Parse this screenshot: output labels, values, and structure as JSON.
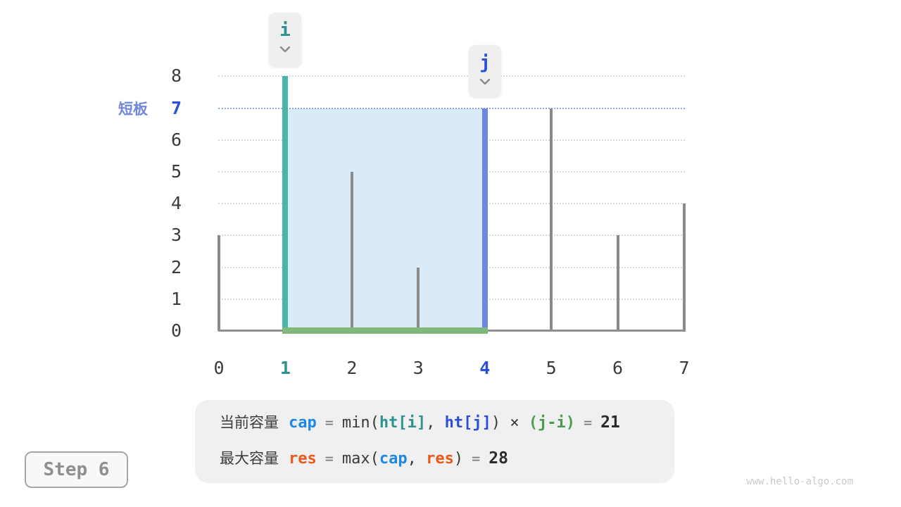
{
  "pointers": {
    "i": {
      "label": "i",
      "index": 1
    },
    "j": {
      "label": "j",
      "index": 4
    }
  },
  "axis": {
    "short_board_label": "短板",
    "y_ticks": [
      0,
      1,
      2,
      3,
      4,
      5,
      6,
      7,
      8
    ],
    "x_ticks": [
      0,
      1,
      2,
      3,
      4,
      5,
      6,
      7
    ]
  },
  "chart_data": {
    "type": "bar",
    "title": "",
    "xlabel": "",
    "ylabel": "",
    "x": [
      0,
      1,
      2,
      3,
      4,
      5,
      6,
      7
    ],
    "values": [
      3,
      8,
      5,
      2,
      7,
      7,
      3,
      4
    ],
    "ylim": [
      0,
      8
    ],
    "grid": "horizontal-dotted",
    "annotations": {
      "pointer_i_index": 1,
      "pointer_j_index": 4,
      "short_board_value": 7,
      "water_level_line": 7,
      "filled_region": {
        "from_x": 1,
        "to_x": 4,
        "top": 7
      }
    }
  },
  "formula_panel": {
    "line1": [
      {
        "t": "当前容量",
        "s": "cn"
      },
      {
        "t": "cap",
        "s": "cap"
      },
      {
        "t": " = ",
        "s": "eq"
      },
      {
        "t": "min(",
        "s": "plain"
      },
      {
        "t": "ht[i]",
        "s": "hti"
      },
      {
        "t": ", ",
        "s": "plain"
      },
      {
        "t": "ht[j]",
        "s": "htj"
      },
      {
        "t": ") × ",
        "s": "plain"
      },
      {
        "t": "(j-i)",
        "s": "ji"
      },
      {
        "t": " = ",
        "s": "eq"
      },
      {
        "t": "21",
        "s": "result"
      }
    ],
    "line2": [
      {
        "t": "最大容量",
        "s": "cn"
      },
      {
        "t": "res",
        "s": "res"
      },
      {
        "t": " = ",
        "s": "eq"
      },
      {
        "t": "max(",
        "s": "plain"
      },
      {
        "t": "cap",
        "s": "cap"
      },
      {
        "t": ", ",
        "s": "plain"
      },
      {
        "t": "res",
        "s": "res"
      },
      {
        "t": ")",
        "s": "plain"
      },
      {
        "t": " = ",
        "s": "eq"
      },
      {
        "t": "28",
        "s": "result"
      }
    ]
  },
  "step_badge": {
    "label": "Step 6"
  },
  "watermark": "www.hello-algo.com",
  "colors": {
    "i_pointer_teal": "#2e938c",
    "i_bar_teal": "#4ab5ac",
    "j_pointer_blue": "#2b4fd7",
    "j_bar_blue": "#6e86e3",
    "short_board_label_blue": "#7288dd",
    "water_line_blue": "#91a5e8",
    "area_fill_blue": "#daeaf7",
    "base_green": "#80b87c",
    "bar_gray": "#8a8a8a",
    "cap_blue": "#1e88e5",
    "res_orange": "#e8591a",
    "j_minus_i_green": "#4a9d4e"
  }
}
